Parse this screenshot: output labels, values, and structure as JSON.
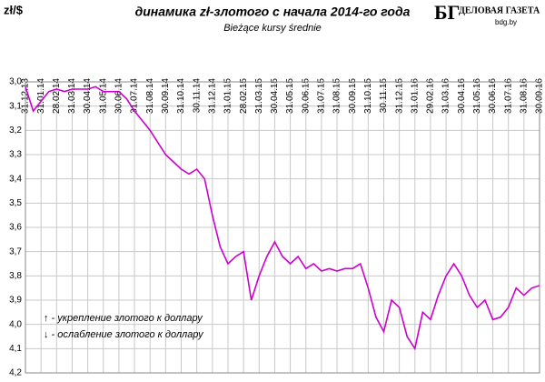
{
  "chart_data": {
    "type": "line",
    "title": "динамика zł-злотого с начала 2014-го года",
    "subtitle": "Bieżące kursy średnie",
    "y_label": "zł/$",
    "logo": {
      "mark": "БГ",
      "name": "ДЕЛОВАЯ ГАЗЕТА",
      "site": "bdg.by"
    },
    "annotations": [
      "↑ - укрепление злотого к доллару",
      "↓ - ослабление злотого к доллару"
    ],
    "categories": [
      "31.12.13",
      null,
      "31.01.14",
      null,
      "28.02.14",
      null,
      "31.03.14",
      null,
      "30.04.14",
      null,
      "31.05.14",
      null,
      "30.06.14",
      null,
      "31.07.14",
      null,
      "31.08.14",
      null,
      "30.09.14",
      null,
      "31.10.14",
      null,
      "30.11.14",
      null,
      "31.12.14",
      null,
      "31.01.15",
      null,
      "28.02.15",
      null,
      "31.03.15",
      null,
      "30.04.15",
      null,
      "31.05.15",
      null,
      "30.06.15",
      null,
      "31.07.15",
      null,
      "31.08.15",
      null,
      "30.09.15",
      null,
      "31.10.15",
      null,
      "30.11.15",
      null,
      "31.12.15",
      null,
      "31.01.16",
      null,
      "29.02.16",
      null,
      "31.03.16",
      null,
      "30.04.16",
      null,
      "31.05.16",
      null,
      "30.06.16",
      null,
      "31.07.16",
      null,
      "31.08.16",
      null,
      "30.09.16"
    ],
    "values": [
      3.02,
      3.12,
      3.08,
      3.04,
      3.03,
      3.04,
      3.03,
      3.03,
      3.03,
      3.02,
      3.04,
      3.04,
      3.04,
      3.07,
      3.12,
      3.16,
      3.2,
      3.25,
      3.3,
      3.33,
      3.36,
      3.38,
      3.36,
      3.4,
      3.55,
      3.68,
      3.75,
      3.72,
      3.7,
      3.9,
      3.8,
      3.72,
      3.66,
      3.72,
      3.75,
      3.72,
      3.77,
      3.75,
      3.78,
      3.77,
      3.78,
      3.77,
      3.77,
      3.75,
      3.85,
      3.97,
      4.03,
      3.9,
      3.93,
      4.05,
      4.1,
      3.95,
      3.98,
      3.88,
      3.8,
      3.75,
      3.8,
      3.88,
      3.93,
      3.9,
      3.98,
      3.97,
      3.93,
      3.85,
      3.88,
      3.85,
      3.84
    ],
    "color": "#cc00cc",
    "ylim": [
      3.0,
      4.2
    ],
    "inverted": true,
    "grid": true,
    "yticks": [
      {
        "value": 3.0,
        "label": "3,0"
      },
      {
        "value": 3.1,
        "label": "3,1"
      },
      {
        "value": 3.2,
        "label": "3,2"
      },
      {
        "value": 3.3,
        "label": "3,3"
      },
      {
        "value": 3.4,
        "label": "3,4"
      },
      {
        "value": 3.5,
        "label": "3,5"
      },
      {
        "value": 3.6,
        "label": "3,6"
      },
      {
        "value": 3.7,
        "label": "3,7"
      },
      {
        "value": 3.8,
        "label": "3,8"
      },
      {
        "value": 3.9,
        "label": "3,9"
      },
      {
        "value": 4.0,
        "label": "4,0"
      },
      {
        "value": 4.1,
        "label": "4,1"
      },
      {
        "value": 4.2,
        "label": "4,2"
      }
    ]
  }
}
